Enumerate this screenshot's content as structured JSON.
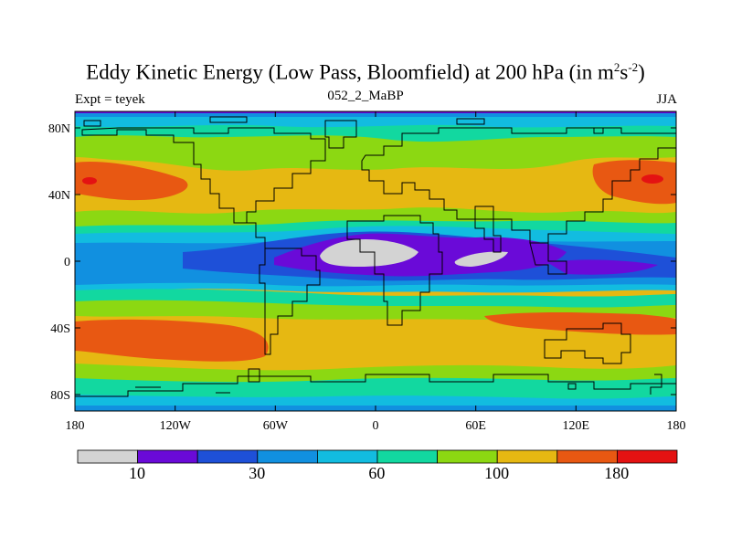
{
  "title_text": "Eddy Kinetic Energy (Low Pass, Bloomfield) at 200 hPa (in m",
  "title_sup1": "2",
  "title_mid": "s",
  "title_sup2": "-2",
  "title_end": ")",
  "subtitle_left": "Expt = teyek",
  "subtitle_center": "052_2_MaBP",
  "subtitle_right": "JJA",
  "lat_labels": [
    "80N",
    "40N",
    "0",
    "40S",
    "80S"
  ],
  "lon_labels": [
    "180",
    "120W",
    "60W",
    "0",
    "60E",
    "120E",
    "180"
  ],
  "colorbar": {
    "colors": [
      "#d3d3d3",
      "#6a0ad8",
      "#1e50d8",
      "#1190e0",
      "#12bce0",
      "#12d8a0",
      "#8cd812",
      "#e6b812",
      "#e85812",
      "#e41212"
    ],
    "labels": [
      "10",
      "30",
      "60",
      "100",
      "180"
    ]
  },
  "colors": {
    "land_outline": "#000000",
    "frame": "#000000"
  }
}
